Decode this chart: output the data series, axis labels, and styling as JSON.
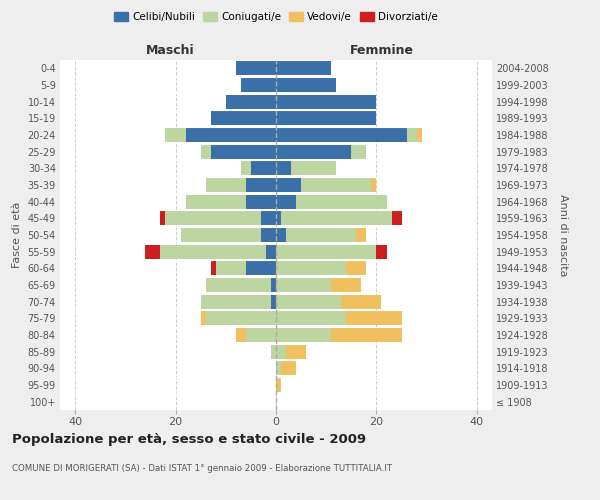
{
  "age_groups": [
    "100+",
    "95-99",
    "90-94",
    "85-89",
    "80-84",
    "75-79",
    "70-74",
    "65-69",
    "60-64",
    "55-59",
    "50-54",
    "45-49",
    "40-44",
    "35-39",
    "30-34",
    "25-29",
    "20-24",
    "15-19",
    "10-14",
    "5-9",
    "0-4"
  ],
  "birth_years": [
    "≤ 1908",
    "1909-1913",
    "1914-1918",
    "1919-1923",
    "1924-1928",
    "1929-1933",
    "1934-1938",
    "1939-1943",
    "1944-1948",
    "1949-1953",
    "1954-1958",
    "1959-1963",
    "1964-1968",
    "1969-1973",
    "1974-1978",
    "1979-1983",
    "1984-1988",
    "1989-1993",
    "1994-1998",
    "1999-2003",
    "2004-2008"
  ],
  "maschi": {
    "celibi": [
      0,
      0,
      0,
      0,
      0,
      0,
      1,
      1,
      6,
      2,
      3,
      3,
      6,
      6,
      5,
      13,
      18,
      13,
      10,
      7,
      8
    ],
    "coniugati": [
      0,
      0,
      0,
      1,
      6,
      14,
      14,
      13,
      6,
      21,
      16,
      19,
      12,
      8,
      2,
      2,
      4,
      0,
      0,
      0,
      0
    ],
    "vedovi": [
      0,
      0,
      0,
      0,
      2,
      1,
      0,
      0,
      0,
      0,
      0,
      0,
      0,
      0,
      0,
      0,
      0,
      0,
      0,
      0,
      0
    ],
    "divorziati": [
      0,
      0,
      0,
      0,
      0,
      0,
      0,
      0,
      1,
      3,
      0,
      1,
      0,
      0,
      0,
      0,
      0,
      0,
      0,
      0,
      0
    ]
  },
  "femmine": {
    "nubili": [
      0,
      0,
      0,
      0,
      0,
      0,
      0,
      0,
      0,
      0,
      2,
      1,
      4,
      5,
      3,
      15,
      26,
      20,
      20,
      12,
      11
    ],
    "coniugate": [
      0,
      0,
      1,
      2,
      11,
      14,
      13,
      11,
      14,
      20,
      14,
      22,
      18,
      14,
      9,
      3,
      2,
      0,
      0,
      0,
      0
    ],
    "vedove": [
      0,
      1,
      3,
      4,
      14,
      11,
      8,
      6,
      4,
      0,
      2,
      0,
      0,
      1,
      0,
      0,
      1,
      0,
      0,
      0,
      0
    ],
    "divorziate": [
      0,
      0,
      0,
      0,
      0,
      0,
      0,
      0,
      0,
      2,
      0,
      2,
      0,
      0,
      0,
      0,
      0,
      0,
      0,
      0,
      0
    ]
  },
  "colors": {
    "celibi": "#3a6fa8",
    "coniugati": "#bdd5a0",
    "vedovi": "#f0c060",
    "divorziati": "#cc2020"
  },
  "title": "Popolazione per età, sesso e stato civile - 2009",
  "subtitle": "COMUNE DI MORIGERATI (SA) - Dati ISTAT 1° gennaio 2009 - Elaborazione TUTTITALIA.IT",
  "xlabel_left": "Maschi",
  "xlabel_right": "Femmine",
  "ylabel_left": "Fasce di età",
  "ylabel_right": "Anni di nascita",
  "xlim": 43,
  "background_color": "#eeeeee",
  "plot_background": "#ffffff",
  "legend_labels": [
    "Celibi/Nubili",
    "Coniugati/e",
    "Vedovi/e",
    "Divorziati/e"
  ]
}
